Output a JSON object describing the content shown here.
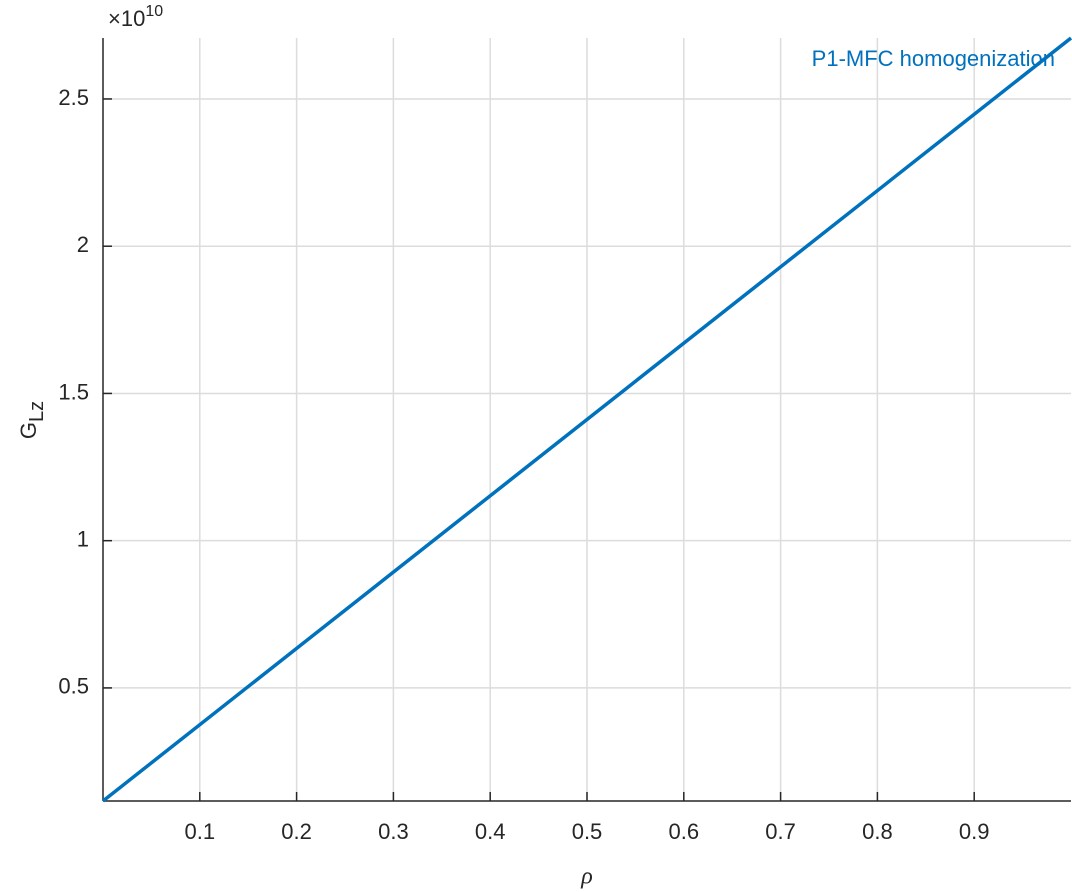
{
  "chart_data": {
    "type": "line",
    "xlabel": "ρ",
    "ylabel": "G",
    "ylabel_subscript": "Lz",
    "y_multiplier": {
      "base": "×10",
      "exponent": "10"
    },
    "x": [
      0,
      1
    ],
    "series": [
      {
        "name": "P1-MFC homogenization",
        "color": "#0072bd",
        "values": [
          0.116,
          2.707
        ]
      }
    ],
    "xlim": [
      0,
      1
    ],
    "xticks": [
      0.1,
      0.2,
      0.3,
      0.4,
      0.5,
      0.6,
      0.7,
      0.8,
      0.9
    ],
    "ylim": [
      0.116,
      2.707
    ],
    "yticks": [
      0.5,
      1,
      1.5,
      2,
      2.5
    ],
    "grid": true,
    "legend": "northeast"
  }
}
